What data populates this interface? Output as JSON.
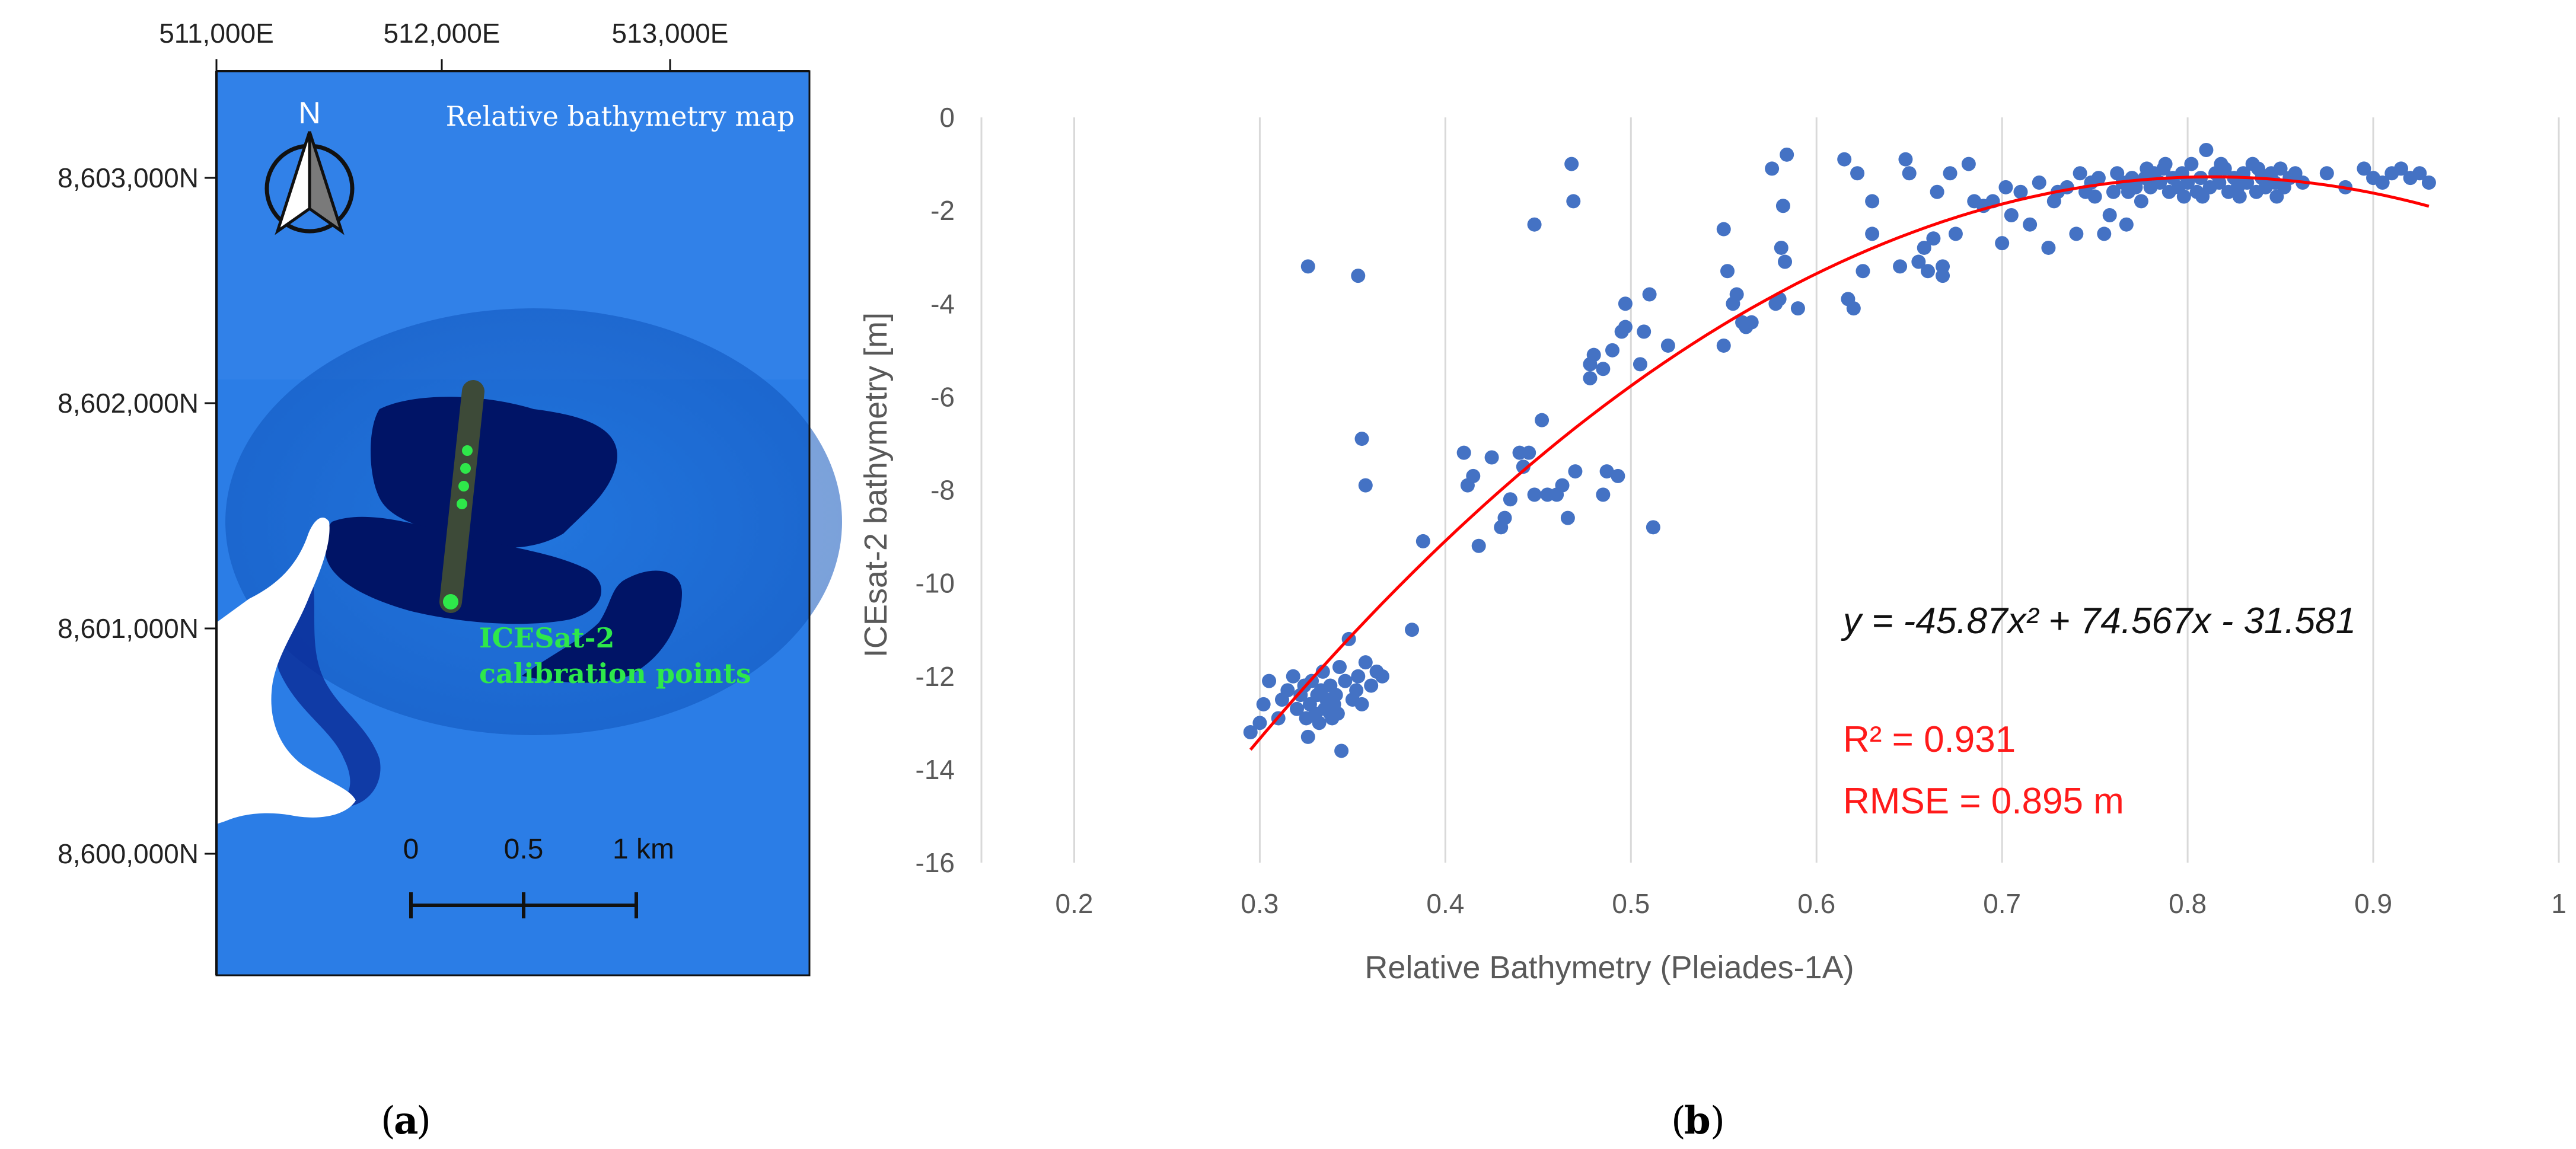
{
  "map": {
    "title": "Relative bathymetry map",
    "north_label": "N",
    "easting_labels": [
      "511,000E",
      "512,000E",
      "513,000E"
    ],
    "northing_labels": [
      "8,603,000N",
      "8,602,000N",
      "8,601,000N",
      "8,600,000N"
    ],
    "callout_line1": "ICESat-2",
    "callout_line2": "calibration points",
    "scale_labels": [
      "0",
      "0.5",
      "1 km"
    ],
    "panel_label": "a"
  },
  "chart_data": {
    "type": "scatter",
    "xlabel": "Relative Bathymetry (Pleiades-1A)",
    "ylabel": "ICEsat-2 bathymetry [m]",
    "xlim": [
      0.15,
      1.0
    ],
    "ylim": [
      -16,
      0
    ],
    "xticks": [
      "0.2",
      "0.3",
      "0.4",
      "0.5",
      "0.6",
      "0.7",
      "0.8",
      "0.9",
      "1"
    ],
    "yticks": [
      "0",
      "-2",
      "-4",
      "-6",
      "-8",
      "-10",
      "-12",
      "-14",
      "-16"
    ],
    "grid": "vertical",
    "point_color": "#4472c4",
    "fit_color": "#ff0000",
    "fit": {
      "a": -45.87,
      "b": 74.567,
      "c": -31.581,
      "x_range": [
        0.295,
        0.93
      ]
    },
    "equation": "y = -45.87x² + 74.567x - 31.581",
    "r2": "R² = 0.931",
    "rmse": "RMSE = 0.895 m",
    "panel_label": "b",
    "points": [
      [
        0.295,
        -13.2
      ],
      [
        0.3,
        -13.0
      ],
      [
        0.302,
        -12.6
      ],
      [
        0.305,
        -12.1
      ],
      [
        0.31,
        -12.9
      ],
      [
        0.312,
        -12.5
      ],
      [
        0.315,
        -12.3
      ],
      [
        0.318,
        -12.0
      ],
      [
        0.32,
        -12.7
      ],
      [
        0.322,
        -12.4
      ],
      [
        0.324,
        -12.2
      ],
      [
        0.325,
        -12.9
      ],
      [
        0.327,
        -12.6
      ],
      [
        0.328,
        -12.1
      ],
      [
        0.33,
        -12.8
      ],
      [
        0.331,
        -12.4
      ],
      [
        0.332,
        -13.0
      ],
      [
        0.333,
        -12.3
      ],
      [
        0.334,
        -11.9
      ],
      [
        0.335,
        -12.7
      ],
      [
        0.336,
        -12.5
      ],
      [
        0.338,
        -12.2
      ],
      [
        0.339,
        -12.9
      ],
      [
        0.34,
        -12.6
      ],
      [
        0.341,
        -12.4
      ],
      [
        0.342,
        -12.8
      ],
      [
        0.343,
        -11.8
      ],
      [
        0.344,
        -13.6
      ],
      [
        0.346,
        -12.1
      ],
      [
        0.348,
        -11.2
      ],
      [
        0.35,
        -12.5
      ],
      [
        0.352,
        -12.3
      ],
      [
        0.353,
        -12.0
      ],
      [
        0.355,
        -12.6
      ],
      [
        0.357,
        -11.7
      ],
      [
        0.36,
        -12.2
      ],
      [
        0.363,
        -11.9
      ],
      [
        0.366,
        -12.0
      ],
      [
        0.326,
        -13.3
      ],
      [
        0.338,
        -12.8
      ],
      [
        0.326,
        -3.2
      ],
      [
        0.353,
        -3.4
      ],
      [
        0.355,
        -6.9
      ],
      [
        0.357,
        -7.9
      ],
      [
        0.382,
        -11.0
      ],
      [
        0.388,
        -9.1
      ],
      [
        0.41,
        -7.2
      ],
      [
        0.412,
        -7.9
      ],
      [
        0.415,
        -7.7
      ],
      [
        0.418,
        -9.2
      ],
      [
        0.425,
        -7.3
      ],
      [
        0.43,
        -8.8
      ],
      [
        0.432,
        -8.6
      ],
      [
        0.435,
        -8.2
      ],
      [
        0.44,
        -7.2
      ],
      [
        0.442,
        -7.5
      ],
      [
        0.445,
        -7.2
      ],
      [
        0.448,
        -8.1
      ],
      [
        0.448,
        -2.3
      ],
      [
        0.452,
        -6.5
      ],
      [
        0.455,
        -8.1
      ],
      [
        0.46,
        -8.1
      ],
      [
        0.463,
        -7.9
      ],
      [
        0.466,
        -8.6
      ],
      [
        0.468,
        -1.0
      ],
      [
        0.469,
        -1.8
      ],
      [
        0.47,
        -7.6
      ],
      [
        0.478,
        -5.3
      ],
      [
        0.478,
        -5.6
      ],
      [
        0.48,
        -5.1
      ],
      [
        0.485,
        -5.4
      ],
      [
        0.485,
        -8.1
      ],
      [
        0.487,
        -7.6
      ],
      [
        0.49,
        -5.0
      ],
      [
        0.493,
        -7.7
      ],
      [
        0.495,
        -4.6
      ],
      [
        0.497,
        -4.5
      ],
      [
        0.497,
        -4.0
      ],
      [
        0.505,
        -5.3
      ],
      [
        0.507,
        -4.6
      ],
      [
        0.51,
        -3.8
      ],
      [
        0.512,
        -8.8
      ],
      [
        0.52,
        -4.9
      ],
      [
        0.55,
        -2.4
      ],
      [
        0.55,
        -4.9
      ],
      [
        0.552,
        -3.3
      ],
      [
        0.555,
        -4.0
      ],
      [
        0.557,
        -3.8
      ],
      [
        0.56,
        -4.4
      ],
      [
        0.562,
        -4.5
      ],
      [
        0.565,
        -4.4
      ],
      [
        0.576,
        -1.1
      ],
      [
        0.578,
        -4.0
      ],
      [
        0.58,
        -3.9
      ],
      [
        0.581,
        -2.8
      ],
      [
        0.582,
        -1.9
      ],
      [
        0.583,
        -3.1
      ],
      [
        0.584,
        -0.8
      ],
      [
        0.59,
        -4.1
      ],
      [
        0.615,
        -0.9
      ],
      [
        0.617,
        -3.9
      ],
      [
        0.62,
        -4.1
      ],
      [
        0.622,
        -1.2
      ],
      [
        0.625,
        -3.3
      ],
      [
        0.63,
        -2.5
      ],
      [
        0.63,
        -1.8
      ],
      [
        0.645,
        -3.2
      ],
      [
        0.648,
        -0.9
      ],
      [
        0.65,
        -1.2
      ],
      [
        0.655,
        -3.1
      ],
      [
        0.658,
        -2.8
      ],
      [
        0.66,
        -3.3
      ],
      [
        0.663,
        -2.6
      ],
      [
        0.665,
        -1.6
      ],
      [
        0.668,
        -3.4
      ],
      [
        0.668,
        -3.2
      ],
      [
        0.672,
        -1.2
      ],
      [
        0.675,
        -2.5
      ],
      [
        0.682,
        -1.0
      ],
      [
        0.685,
        -1.8
      ],
      [
        0.69,
        -1.9
      ],
      [
        0.695,
        -1.8
      ],
      [
        0.7,
        -2.7
      ],
      [
        0.702,
        -1.5
      ],
      [
        0.705,
        -2.1
      ],
      [
        0.71,
        -1.6
      ],
      [
        0.715,
        -2.3
      ],
      [
        0.72,
        -1.4
      ],
      [
        0.725,
        -2.8
      ],
      [
        0.728,
        -1.8
      ],
      [
        0.73,
        -1.6
      ],
      [
        0.735,
        -1.5
      ],
      [
        0.74,
        -2.5
      ],
      [
        0.742,
        -1.2
      ],
      [
        0.745,
        -1.6
      ],
      [
        0.748,
        -1.4
      ],
      [
        0.75,
        -1.7
      ],
      [
        0.752,
        -1.3
      ],
      [
        0.755,
        -2.5
      ],
      [
        0.758,
        -2.1
      ],
      [
        0.76,
        -1.6
      ],
      [
        0.762,
        -1.2
      ],
      [
        0.765,
        -1.4
      ],
      [
        0.767,
        -2.3
      ],
      [
        0.77,
        -1.3
      ],
      [
        0.772,
        -1.5
      ],
      [
        0.775,
        -1.8
      ],
      [
        0.777,
        -1.3
      ],
      [
        0.78,
        -1.5
      ],
      [
        0.782,
        -1.2
      ],
      [
        0.785,
        -1.4
      ],
      [
        0.787,
        -1.1
      ],
      [
        0.79,
        -1.6
      ],
      [
        0.792,
        -1.3
      ],
      [
        0.795,
        -1.5
      ],
      [
        0.797,
        -1.2
      ],
      [
        0.8,
        -1.4
      ],
      [
        0.802,
        -1.0
      ],
      [
        0.805,
        -1.6
      ],
      [
        0.807,
        -1.3
      ],
      [
        0.81,
        -0.7
      ],
      [
        0.812,
        -1.5
      ],
      [
        0.815,
        -1.2
      ],
      [
        0.817,
        -1.4
      ],
      [
        0.82,
        -1.1
      ],
      [
        0.822,
        -1.6
      ],
      [
        0.825,
        -1.3
      ],
      [
        0.827,
        -1.5
      ],
      [
        0.83,
        -1.2
      ],
      [
        0.832,
        -1.4
      ],
      [
        0.835,
        -1.0
      ],
      [
        0.837,
        -1.6
      ],
      [
        0.84,
        -1.3
      ],
      [
        0.842,
        -1.5
      ],
      [
        0.845,
        -1.2
      ],
      [
        0.847,
        -1.4
      ],
      [
        0.85,
        -1.1
      ],
      [
        0.852,
        -1.5
      ],
      [
        0.855,
        -1.3
      ],
      [
        0.858,
        -1.2
      ],
      [
        0.862,
        -1.4
      ],
      [
        0.875,
        -1.2
      ],
      [
        0.885,
        -1.5
      ],
      [
        0.895,
        -1.1
      ],
      [
        0.9,
        -1.3
      ],
      [
        0.905,
        -1.4
      ],
      [
        0.91,
        -1.2
      ],
      [
        0.915,
        -1.1
      ],
      [
        0.92,
        -1.3
      ],
      [
        0.925,
        -1.2
      ],
      [
        0.93,
        -1.4
      ],
      [
        0.808,
        -1.7
      ],
      [
        0.788,
        -1.0
      ],
      [
        0.798,
        -1.7
      ],
      [
        0.818,
        -1.0
      ],
      [
        0.828,
        -1.7
      ],
      [
        0.838,
        -1.1
      ],
      [
        0.848,
        -1.7
      ],
      [
        0.768,
        -1.6
      ],
      [
        0.778,
        -1.1
      ]
    ]
  }
}
